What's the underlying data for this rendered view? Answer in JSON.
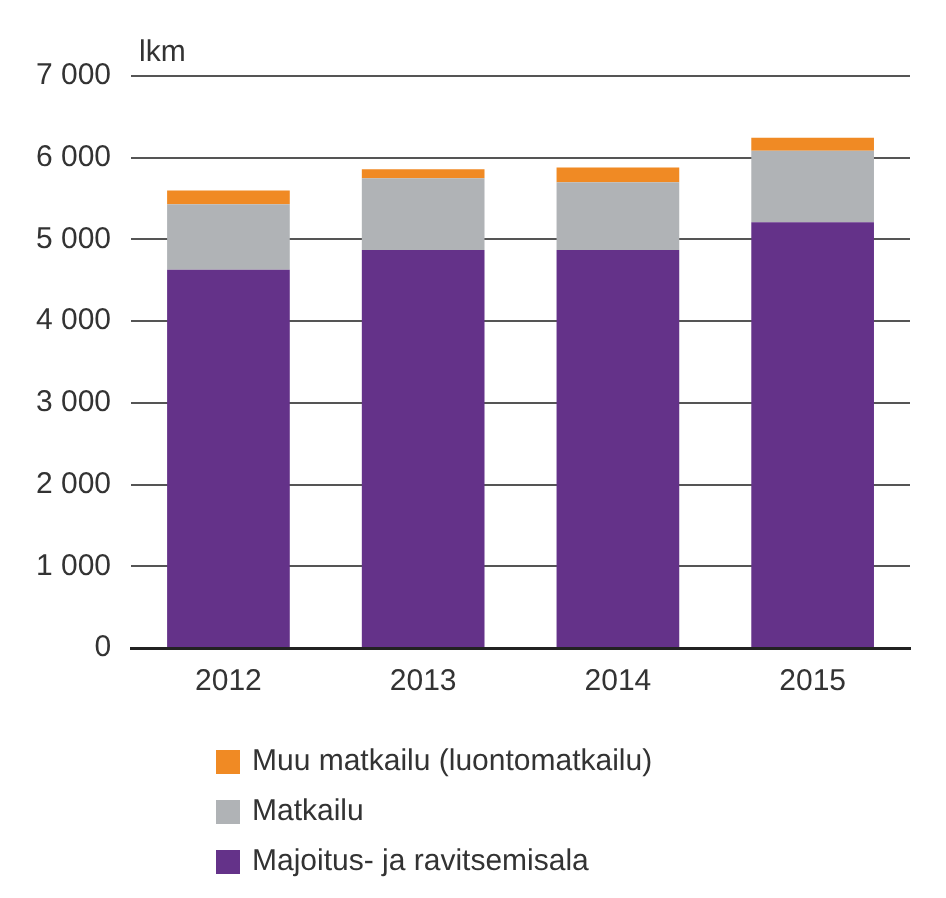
{
  "chart_data": {
    "type": "bar",
    "ylabel": "lkm",
    "categories": [
      "2012",
      "2013",
      "2014",
      "2015"
    ],
    "stacked": true,
    "series": [
      {
        "name": "Majoitus- ja ravitsemisala",
        "color": "#643289",
        "values": [
          4630,
          4870,
          4870,
          5210
        ]
      },
      {
        "name": "Matkailu",
        "color": "#b0b3b6",
        "values": [
          800,
          880,
          830,
          875
        ]
      },
      {
        "name": "Muu matkailu (luontomatkailu)",
        "color": "#f08a24",
        "values": [
          170,
          110,
          180,
          160
        ]
      }
    ],
    "ylim": [
      0,
      7000
    ],
    "yticks": [
      0,
      {
        "value": 1000,
        "label": "1 000"
      },
      {
        "value": 2000,
        "label": "2 000"
      },
      {
        "value": 3000,
        "label": "3 000"
      },
      {
        "value": 4000,
        "label": "4 000"
      },
      {
        "value": 5000,
        "label": "5 000"
      },
      {
        "value": 6000,
        "label": "6 000"
      },
      {
        "value": 7000,
        "label": "7 000"
      }
    ],
    "grid": "y",
    "legend": "bottom"
  }
}
